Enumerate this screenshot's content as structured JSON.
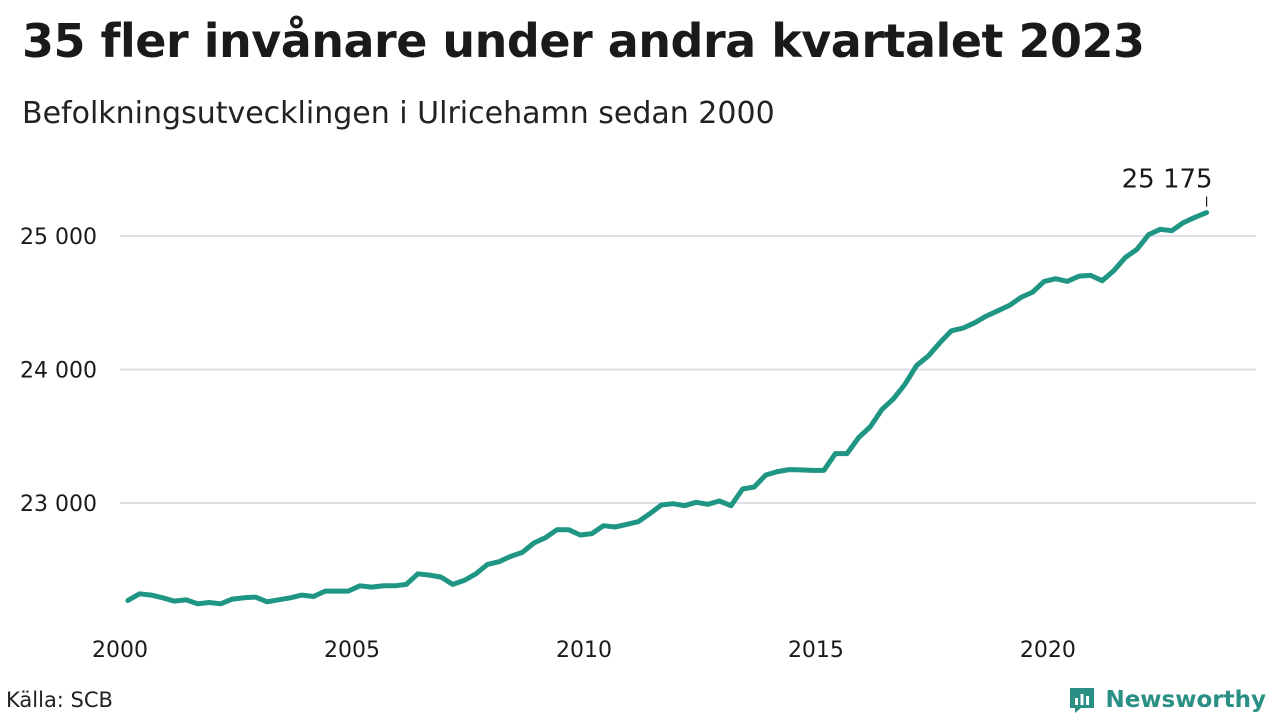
{
  "title": "35 fler invånare under andra kvartalet 2023",
  "subtitle": "Befolkningsutvecklingen i Ulricehamn sedan 2000",
  "source": "Källa: SCB",
  "brand": {
    "name": "Newsworthy",
    "icon": "newsworthy-logo-icon"
  },
  "colors": {
    "line": "#1f9583",
    "grid": "#dedee6",
    "text": "#1a1a1a",
    "brand": "#2a8f85"
  },
  "chart_data": {
    "type": "line",
    "title": "35 fler invånare under andra kvartalet 2023",
    "subtitle": "Befolkningsutvecklingen i Ulricehamn sedan 2000",
    "xlabel": "",
    "ylabel": "",
    "xlim": [
      2000,
      2024
    ],
    "ylim": [
      22000,
      25400
    ],
    "x_ticks": [
      2000,
      2005,
      2010,
      2015,
      2020
    ],
    "x_tick_labels": [
      "2000",
      "2005",
      "2010",
      "2015",
      "2020"
    ],
    "y_ticks": [
      23000,
      24000,
      25000
    ],
    "y_tick_labels": [
      "23 000",
      "24 000",
      "25 000"
    ],
    "grid": "horizontal",
    "annotation": {
      "text": "25 175",
      "value": 25175
    },
    "series": [
      {
        "x": [
          2000.17,
          2000.42,
          2000.67,
          2000.92,
          2001.17,
          2001.42,
          2001.67,
          2001.92,
          2002.17,
          2002.42,
          2002.67,
          2002.92,
          2003.17,
          2003.42,
          2003.67,
          2003.92,
          2004.17,
          2004.42,
          2004.67,
          2004.92,
          2005.17,
          2005.42,
          2005.67,
          2005.92,
          2006.17,
          2006.42,
          2006.67,
          2006.92,
          2007.17,
          2007.42,
          2007.67,
          2007.92,
          2008.17,
          2008.42,
          2008.67,
          2008.92,
          2009.17,
          2009.42,
          2009.67,
          2009.92,
          2010.17,
          2010.42,
          2010.67,
          2010.92,
          2011.17,
          2011.42,
          2011.67,
          2011.92,
          2012.17,
          2012.42,
          2012.67,
          2012.92,
          2013.17,
          2013.42,
          2013.67,
          2013.92,
          2014.17,
          2014.42,
          2014.67,
          2014.92,
          2015.17,
          2015.42,
          2015.67,
          2015.92,
          2016.17,
          2016.42,
          2016.67,
          2016.92,
          2017.17,
          2017.42,
          2017.67,
          2017.92,
          2018.17,
          2018.42,
          2018.67,
          2018.92,
          2019.17,
          2019.42,
          2019.67,
          2019.92,
          2020.17,
          2020.42,
          2020.67,
          2020.92,
          2021.17,
          2021.42,
          2021.67,
          2021.92,
          2022.17,
          2022.42,
          2022.67,
          2022.92,
          2023.17,
          2023.42
        ],
        "values": [
          22270,
          22320,
          22310,
          22290,
          22265,
          22275,
          22245,
          22255,
          22245,
          22280,
          22290,
          22295,
          22260,
          22275,
          22290,
          22310,
          22300,
          22340,
          22340,
          22340,
          22380,
          22370,
          22380,
          22380,
          22390,
          22470,
          22460,
          22445,
          22390,
          22420,
          22470,
          22540,
          22560,
          22600,
          22630,
          22700,
          22740,
          22800,
          22800,
          22760,
          22770,
          22830,
          22820,
          22840,
          22860,
          22920,
          22985,
          22995,
          22980,
          23005,
          22990,
          23015,
          22980,
          23105,
          23120,
          23210,
          23235,
          23250,
          23248,
          23244,
          23244,
          23370,
          23370,
          23490,
          23570,
          23700,
          23780,
          23890,
          24030,
          24100,
          24200,
          24290,
          24310,
          24350,
          24400,
          24440,
          24480,
          24540,
          24580,
          24660,
          24680,
          24660,
          24700,
          24705,
          24665,
          24740,
          24840,
          24900,
          25010,
          25050,
          25040,
          25100,
          25140,
          25175
        ]
      }
    ]
  }
}
